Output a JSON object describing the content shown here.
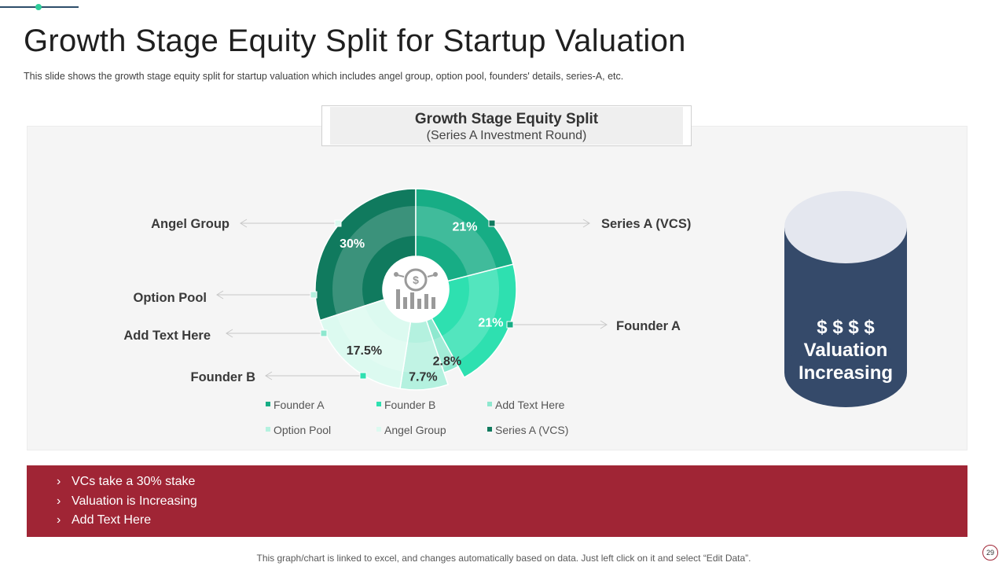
{
  "page": {
    "title": "Growth Stage Equity Split for Startup Valuation",
    "subtitle": "This slide shows the growth  stage equity split for startup valuation  which includes angel group,  option pool, founders'  details, series-A, etc.",
    "footnote": "This graph/chart is linked to excel,  and changes automatically based on data. Just left click on it and select “Edit Data”.",
    "page_number": "29"
  },
  "chart_data": {
    "type": "pie",
    "style": "donut",
    "title": "Growth Stage Equity Split",
    "subtitle": "(Series A Investment  Round)",
    "center_icon": "dollar-growth-icon",
    "series": [
      {
        "name": "Series A (VCS)",
        "value": 30,
        "label": "30%",
        "color": "#107a5e"
      },
      {
        "name": "Founder A",
        "value": 21,
        "label": "21%",
        "color": "#17ad85"
      },
      {
        "name": "Founder B",
        "value": 21,
        "label": "21%",
        "color": "#2ee0b0"
      },
      {
        "name": "Add Text Here",
        "value": 2.8,
        "label": "2.8%",
        "color": "#8ee8cf"
      },
      {
        "name": "Option Pool",
        "value": 7.7,
        "label": "7.7%",
        "color": "#b4f1df"
      },
      {
        "name": "Angel Group",
        "value": 17.5,
        "label": "17.5%",
        "color": "#dcfaf0"
      }
    ],
    "legend": [
      "Founder A",
      "Founder B",
      "Add Text Here",
      "Option Pool",
      "Angel Group",
      "Series A (VCS)"
    ],
    "legend_position": "bottom",
    "callouts": {
      "Angel Group": "Angel Group",
      "Option Pool": "Option Pool",
      "Add Text Here": "Add Text Here",
      "Founder B": "Founder B",
      "Series A (VCS)": "Series A (VCS)",
      "Founder A": "Founder A"
    }
  },
  "cylinder": {
    "line1": "$ $ $ $",
    "line2": "Valuation",
    "line3": "Increasing",
    "body_color": "#354a6a",
    "top_color": "#e4e7ef"
  },
  "bullets": [
    "VCs take a 30% stake",
    "Valuation is Increasing",
    "Add Text Here"
  ],
  "bullet_marker": "›"
}
